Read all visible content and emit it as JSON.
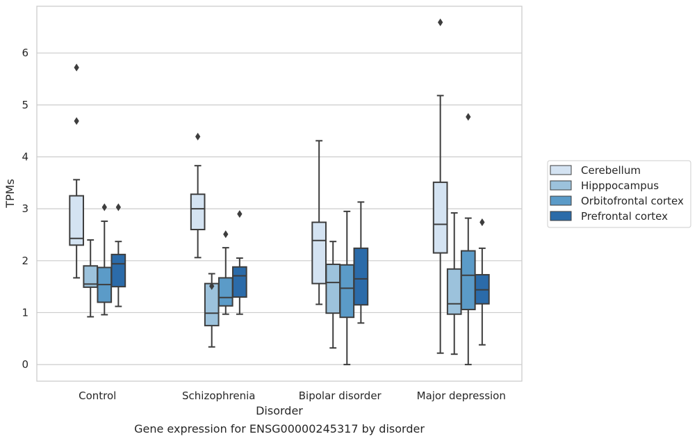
{
  "chart_data": {
    "type": "box",
    "caption": "Gene expression for ENSG00000245317 by disorder",
    "xlabel": "Disorder",
    "ylabel": "TPMs",
    "ylim": [
      -0.32,
      6.9
    ],
    "yticks": [
      0,
      1,
      2,
      3,
      4,
      5,
      6
    ],
    "grid": "horizontal",
    "legend_position": "right",
    "categories": [
      "Control",
      "Schizophrenia",
      "Bipolar disorder",
      "Major depression"
    ],
    "series": [
      {
        "name": "Cerebellum",
        "color": "#d4e3f2",
        "boxes": [
          {
            "whislo": 1.67,
            "q1": 2.3,
            "med": 2.43,
            "q3": 3.25,
            "whishi": 3.56,
            "fliers": [
              4.69,
              5.72
            ]
          },
          {
            "whislo": 2.06,
            "q1": 2.6,
            "med": 3.0,
            "q3": 3.28,
            "whishi": 3.83,
            "fliers": [
              4.39
            ]
          },
          {
            "whislo": 1.16,
            "q1": 1.56,
            "med": 2.39,
            "q3": 2.74,
            "whishi": 4.31,
            "fliers": []
          },
          {
            "whislo": 0.22,
            "q1": 2.15,
            "med": 2.7,
            "q3": 3.51,
            "whishi": 5.18,
            "fliers": [
              6.59
            ]
          }
        ]
      },
      {
        "name": "Hipppocampus",
        "color": "#9cc2dc",
        "boxes": [
          {
            "whislo": 0.92,
            "q1": 1.49,
            "med": 1.55,
            "q3": 1.9,
            "whishi": 2.4,
            "fliers": []
          },
          {
            "whislo": 0.34,
            "q1": 0.75,
            "med": 0.99,
            "q3": 1.56,
            "whishi": 1.75,
            "fliers": [
              1.51
            ]
          },
          {
            "whislo": 0.32,
            "q1": 0.99,
            "med": 1.58,
            "q3": 1.93,
            "whishi": 2.37,
            "fliers": []
          },
          {
            "whislo": 0.2,
            "q1": 0.97,
            "med": 1.17,
            "q3": 1.84,
            "whishi": 2.92,
            "fliers": []
          }
        ]
      },
      {
        "name": "Orbitofrontal cortex",
        "color": "#5b9bc8",
        "boxes": [
          {
            "whislo": 0.96,
            "q1": 1.2,
            "med": 1.54,
            "q3": 1.87,
            "whishi": 2.76,
            "fliers": [
              3.03
            ]
          },
          {
            "whislo": 0.97,
            "q1": 1.13,
            "med": 1.29,
            "q3": 1.67,
            "whishi": 2.25,
            "fliers": [
              2.51
            ]
          },
          {
            "whislo": 0.0,
            "q1": 0.91,
            "med": 1.47,
            "q3": 1.92,
            "whishi": 2.95,
            "fliers": []
          },
          {
            "whislo": 0.0,
            "q1": 1.06,
            "med": 1.72,
            "q3": 2.19,
            "whishi": 2.82,
            "fliers": [
              4.77
            ]
          }
        ]
      },
      {
        "name": "Prefrontal cortex",
        "color": "#2b6ba9",
        "boxes": [
          {
            "whislo": 1.12,
            "q1": 1.5,
            "med": 1.94,
            "q3": 2.12,
            "whishi": 2.37,
            "fliers": [
              3.03
            ]
          },
          {
            "whislo": 0.97,
            "q1": 1.3,
            "med": 1.71,
            "q3": 1.88,
            "whishi": 2.05,
            "fliers": [
              2.9
            ]
          },
          {
            "whislo": 0.8,
            "q1": 1.15,
            "med": 1.65,
            "q3": 2.24,
            "whishi": 3.13,
            "fliers": []
          },
          {
            "whislo": 0.38,
            "q1": 1.17,
            "med": 1.44,
            "q3": 1.73,
            "whishi": 2.24,
            "fliers": [
              2.74
            ]
          }
        ]
      }
    ]
  }
}
